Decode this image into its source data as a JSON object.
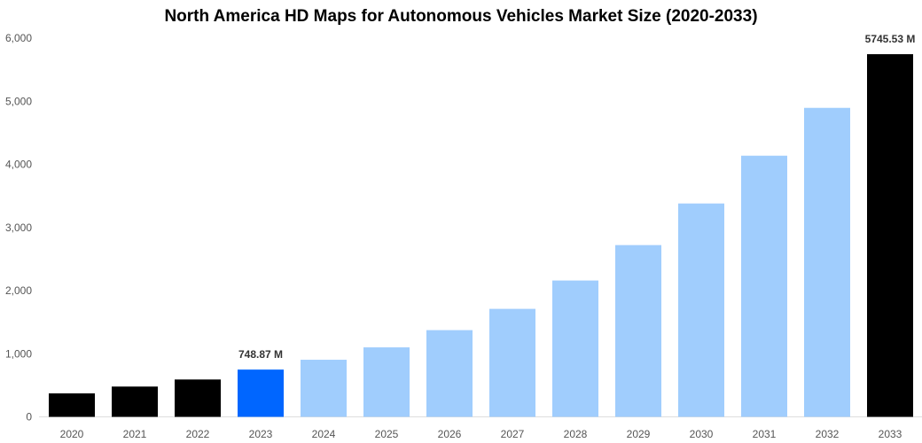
{
  "chart_data": {
    "type": "bar",
    "title": "North America HD Maps for Autonomous Vehicles Market Size (2020-2033)",
    "xlabel": "",
    "ylabel": "",
    "ylim": [
      0,
      6000
    ],
    "yticks": [
      "0",
      "1,000",
      "2,000",
      "3,000",
      "4,000",
      "5,000",
      "6,000"
    ],
    "ytick_values": [
      0,
      1000,
      2000,
      3000,
      4000,
      5000,
      6000
    ],
    "grid": false,
    "categories": [
      "2020",
      "2021",
      "2022",
      "2023",
      "2024",
      "2025",
      "2026",
      "2027",
      "2028",
      "2029",
      "2030",
      "2031",
      "2032",
      "2033"
    ],
    "values": [
      372,
      480,
      592,
      748.87,
      905,
      1101,
      1374,
      1711,
      2160,
      2721,
      3380,
      4137,
      4895,
      5745.53
    ],
    "bar_colors": [
      "#000000",
      "#000000",
      "#000000",
      "#0066ff",
      "#a0cdfd",
      "#a0cdfd",
      "#a0cdfd",
      "#a0cdfd",
      "#a0cdfd",
      "#a0cdfd",
      "#a0cdfd",
      "#a0cdfd",
      "#a0cdfd",
      "#000000"
    ],
    "data_labels": {
      "2023": "748.87 M",
      "2033": "5745.53 M"
    }
  }
}
